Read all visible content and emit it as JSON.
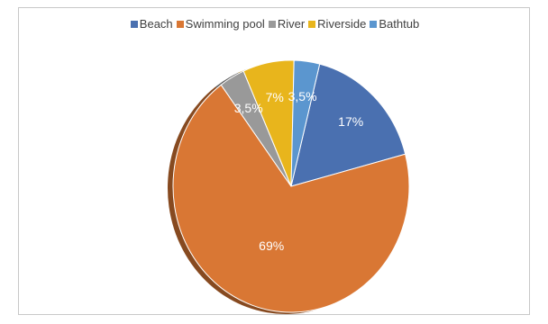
{
  "chart_data": {
    "type": "pie",
    "title": "",
    "legend_position": "top",
    "categories": [
      "Beach",
      "Swimming pool",
      "River",
      "Riverside",
      "Bathtub"
    ],
    "values": [
      17,
      69,
      3.5,
      7,
      3.5
    ],
    "data_labels": [
      "17%",
      "69%",
      "3,5%",
      "7%",
      "3,5%"
    ],
    "colors": [
      "#4a70b0",
      "#d97734",
      "#999999",
      "#e8b51c",
      "#5b96cf"
    ],
    "start_angle_deg": 14,
    "three_d": true
  }
}
